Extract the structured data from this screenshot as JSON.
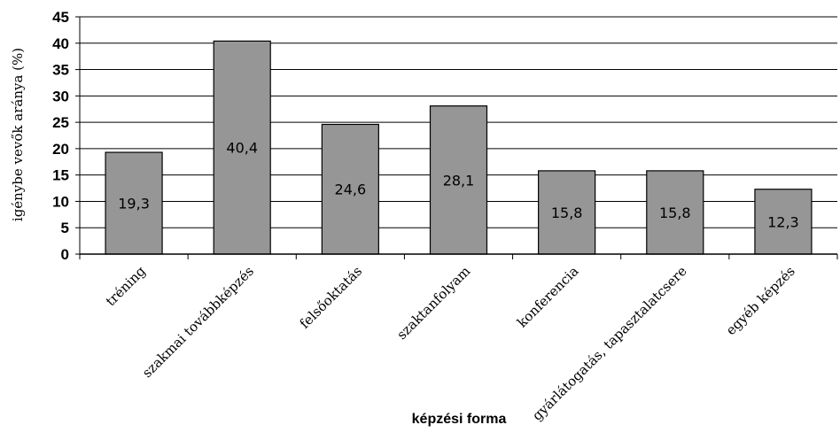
{
  "chart_data": {
    "type": "bar",
    "categories": [
      "tréning",
      "szakmai továbbképzés",
      "felsőoktatás",
      "szaktanfolyam",
      "konferencia",
      "gyárlátogatás, tapasztalatcsere",
      "egyéb képzés"
    ],
    "values": [
      19.3,
      40.4,
      24.6,
      28.1,
      15.8,
      15.8,
      12.3
    ],
    "value_labels": [
      "19,3",
      "40,4",
      "24,6",
      "28,1",
      "15,8",
      "15,8",
      "12,3"
    ],
    "xlabel": "képzési forma",
    "ylabel": "igénybe vevők aránya (%)",
    "ylim": [
      0,
      45
    ],
    "yticks": [
      0,
      5,
      10,
      15,
      20,
      25,
      30,
      35,
      40,
      45
    ],
    "grid": true,
    "legend": "none",
    "colors": {
      "bar": "#969696",
      "bar_stroke": "#000000",
      "grid": "#000000"
    }
  }
}
